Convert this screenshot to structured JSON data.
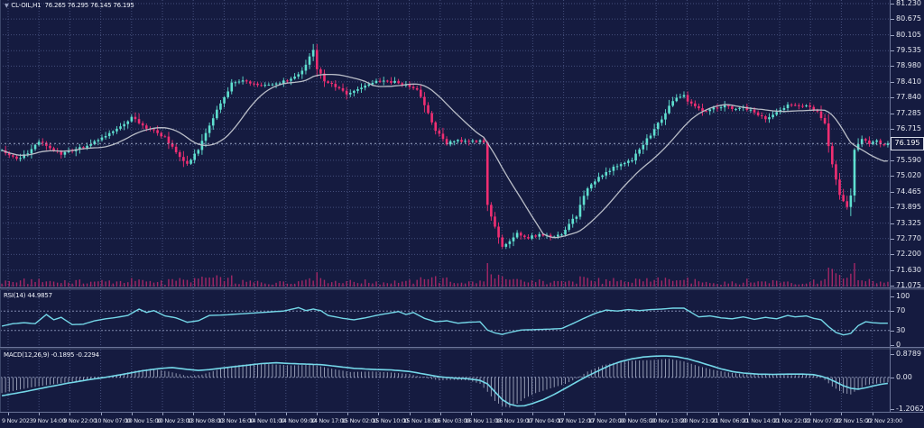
{
  "app": {
    "title_symbol": "CL-OIL,H1",
    "title_ohlc": "76.265 76.295 76.145 76.195"
  },
  "colors": {
    "background": "#151b40",
    "grid": "#454f7c",
    "level_line": "#8089ae",
    "current_price_line": "#9aa3c0",
    "bull": "#5fe0d0",
    "bear": "#f02e72",
    "ma": "#b9bdc7",
    "volume": "#a32766",
    "indicator_line": "#74d7e8",
    "histogram": "#b9c0d4",
    "axis_text": "#e6e9f2"
  },
  "chart_data": [
    {
      "id": "price",
      "type": "candlestick",
      "symbol": "CL-OIL",
      "timeframe": "H1",
      "bars": 240,
      "ylim": [
        71.075,
        81.23
      ],
      "y_ticks": [
        "81.230",
        "80.675",
        "80.105",
        "79.535",
        "78.980",
        "78.410",
        "77.840",
        "77.285",
        "76.715",
        "76.145",
        "75.590",
        "75.020",
        "74.465",
        "73.895",
        "73.325",
        "72.770",
        "72.200",
        "71.630",
        "71.075"
      ],
      "current_price": 76.195,
      "current_price_label": "76.195",
      "ma_period": 16,
      "close_anchors": [
        [
          0,
          75.95
        ],
        [
          2,
          75.8
        ],
        [
          4,
          75.62
        ],
        [
          7,
          75.85
        ],
        [
          10,
          76.28
        ],
        [
          13,
          76.05
        ],
        [
          16,
          75.82
        ],
        [
          19,
          75.95
        ],
        [
          22,
          76.05
        ],
        [
          26,
          76.3
        ],
        [
          29,
          76.55
        ],
        [
          32,
          76.8
        ],
        [
          35,
          77.15
        ],
        [
          38,
          76.8
        ],
        [
          41,
          76.65
        ],
        [
          44,
          76.4
        ],
        [
          47,
          75.9
        ],
        [
          50,
          75.45
        ],
        [
          53,
          75.95
        ],
        [
          55,
          76.55
        ],
        [
          58,
          77.4
        ],
        [
          62,
          78.35
        ],
        [
          66,
          78.45
        ],
        [
          70,
          78.25
        ],
        [
          74,
          78.35
        ],
        [
          78,
          78.5
        ],
        [
          81,
          78.85
        ],
        [
          83,
          79.3
        ],
        [
          84,
          79.55
        ],
        [
          85,
          78.9
        ],
        [
          87,
          78.45
        ],
        [
          90,
          78.25
        ],
        [
          93,
          78.0
        ],
        [
          96,
          78.15
        ],
        [
          99,
          78.3
        ],
        [
          102,
          78.45
        ],
        [
          106,
          78.4
        ],
        [
          109,
          78.3
        ],
        [
          112,
          78.1
        ],
        [
          114,
          77.55
        ],
        [
          117,
          76.7
        ],
        [
          120,
          76.2
        ],
        [
          123,
          76.3
        ],
        [
          126,
          76.25
        ],
        [
          129,
          76.3
        ],
        [
          130,
          76.2
        ],
        [
          131,
          74.0
        ],
        [
          133,
          73.2
        ],
        [
          135,
          72.45
        ],
        [
          137,
          72.7
        ],
        [
          139,
          72.95
        ],
        [
          142,
          72.8
        ],
        [
          145,
          72.9
        ],
        [
          148,
          72.85
        ],
        [
          151,
          72.95
        ],
        [
          153,
          73.3
        ],
        [
          155,
          73.6
        ],
        [
          158,
          74.6
        ],
        [
          161,
          75.0
        ],
        [
          164,
          75.25
        ],
        [
          167,
          75.45
        ],
        [
          170,
          75.6
        ],
        [
          172,
          76.0
        ],
        [
          175,
          76.5
        ],
        [
          178,
          77.1
        ],
        [
          181,
          77.75
        ],
        [
          184,
          77.9
        ],
        [
          186,
          77.6
        ],
        [
          189,
          77.35
        ],
        [
          192,
          77.5
        ],
        [
          195,
          77.55
        ],
        [
          198,
          77.45
        ],
        [
          200,
          77.5
        ],
        [
          203,
          77.3
        ],
        [
          206,
          77.1
        ],
        [
          209,
          77.35
        ],
        [
          212,
          77.6
        ],
        [
          215,
          77.5
        ],
        [
          218,
          77.55
        ],
        [
          220,
          77.3
        ],
        [
          222,
          76.9
        ],
        [
          223,
          76.1
        ],
        [
          224,
          75.4
        ],
        [
          226,
          74.3
        ],
        [
          228,
          73.95
        ],
        [
          229,
          74.3
        ],
        [
          230,
          76.0
        ],
        [
          232,
          76.35
        ],
        [
          234,
          76.2
        ],
        [
          236,
          76.3
        ],
        [
          238,
          76.1
        ],
        [
          239,
          76.195
        ]
      ],
      "x_ticks": [
        "9 Nov 2023",
        "9 Nov 14:00",
        "9 Nov 22:00",
        "10 Nov 07:00",
        "10 Nov 15:00",
        "10 Nov 23:00",
        "13 Nov 08:00",
        "13 Nov 16:00",
        "14 Nov 01:00",
        "14 Nov 09:00",
        "14 Nov 17:00",
        "15 Nov 02:00",
        "15 Nov 10:00",
        "15 Nov 18:00",
        "16 Nov 03:00",
        "16 Nov 11:00",
        "16 Nov 19:00",
        "17 Nov 04:00",
        "17 Nov 12:00",
        "17 Nov 20:00",
        "20 Nov 05:00",
        "20 Nov 13:00",
        "20 Nov 21:00",
        "21 Nov 06:00",
        "21 Nov 14:00",
        "21 Nov 22:00",
        "22 Nov 07:00",
        "22 Nov 15:00",
        "22 Nov 23:00"
      ]
    },
    {
      "id": "rsi",
      "type": "line",
      "label": "RSI(14) 44.9857",
      "value": 44.9857,
      "ylim": [
        0,
        100
      ],
      "levels": [
        70,
        30
      ],
      "y_ticks": [
        "100",
        "70",
        "30",
        "0"
      ],
      "anchors": [
        [
          0,
          39
        ],
        [
          3,
          44
        ],
        [
          6,
          46
        ],
        [
          9,
          44
        ],
        [
          12,
          63
        ],
        [
          14,
          52
        ],
        [
          16,
          57
        ],
        [
          19,
          42
        ],
        [
          22,
          43
        ],
        [
          25,
          50
        ],
        [
          28,
          54
        ],
        [
          31,
          57
        ],
        [
          34,
          61
        ],
        [
          37,
          74
        ],
        [
          39,
          67
        ],
        [
          41,
          71
        ],
        [
          44,
          60
        ],
        [
          47,
          56
        ],
        [
          50,
          47
        ],
        [
          53,
          50
        ],
        [
          56,
          61
        ],
        [
          60,
          62
        ],
        [
          64,
          64
        ],
        [
          68,
          66
        ],
        [
          72,
          68
        ],
        [
          76,
          70
        ],
        [
          80,
          77
        ],
        [
          82,
          71
        ],
        [
          84,
          74
        ],
        [
          86,
          71
        ],
        [
          88,
          61
        ],
        [
          92,
          55
        ],
        [
          95,
          52
        ],
        [
          98,
          56
        ],
        [
          101,
          61
        ],
        [
          104,
          65
        ],
        [
          107,
          69
        ],
        [
          109,
          63
        ],
        [
          111,
          67
        ],
        [
          114,
          55
        ],
        [
          117,
          48
        ],
        [
          120,
          50
        ],
        [
          123,
          45
        ],
        [
          126,
          47
        ],
        [
          129,
          48
        ],
        [
          131,
          31
        ],
        [
          133,
          25
        ],
        [
          135,
          22
        ],
        [
          137,
          26
        ],
        [
          140,
          31
        ],
        [
          144,
          32
        ],
        [
          148,
          33
        ],
        [
          151,
          34
        ],
        [
          154,
          44
        ],
        [
          157,
          55
        ],
        [
          160,
          65
        ],
        [
          163,
          72
        ],
        [
          166,
          70
        ],
        [
          169,
          73
        ],
        [
          172,
          71
        ],
        [
          175,
          73
        ],
        [
          178,
          74
        ],
        [
          181,
          76
        ],
        [
          184,
          76
        ],
        [
          186,
          67
        ],
        [
          188,
          58
        ],
        [
          191,
          60
        ],
        [
          194,
          56
        ],
        [
          197,
          54
        ],
        [
          200,
          58
        ],
        [
          203,
          53
        ],
        [
          206,
          57
        ],
        [
          209,
          54
        ],
        [
          212,
          61
        ],
        [
          214,
          58
        ],
        [
          217,
          60
        ],
        [
          219,
          55
        ],
        [
          221,
          52
        ],
        [
          223,
          38
        ],
        [
          225,
          26
        ],
        [
          227,
          21
        ],
        [
          229,
          24
        ],
        [
          231,
          40
        ],
        [
          233,
          48
        ],
        [
          235,
          46
        ],
        [
          237,
          45
        ],
        [
          239,
          45
        ]
      ]
    },
    {
      "id": "macd",
      "type": "macd",
      "label": "MACD(12,26,9) -0.1895 -0.2294",
      "main_value": -0.1895,
      "signal_value": -0.2294,
      "ylim": [
        -1.2062,
        0.8789
      ],
      "y_ticks": [
        "0.8789",
        "0.00",
        "-1.2062"
      ],
      "main_anchors": [
        [
          0,
          -0.6
        ],
        [
          8,
          -0.38
        ],
        [
          16,
          -0.22
        ],
        [
          22,
          -0.12
        ],
        [
          27,
          0.0
        ],
        [
          32,
          0.12
        ],
        [
          36,
          0.25
        ],
        [
          40,
          0.32
        ],
        [
          45,
          0.22
        ],
        [
          50,
          0.05
        ],
        [
          54,
          0.1
        ],
        [
          58,
          0.28
        ],
        [
          63,
          0.45
        ],
        [
          68,
          0.52
        ],
        [
          72,
          0.5
        ],
        [
          78,
          0.45
        ],
        [
          84,
          0.48
        ],
        [
          88,
          0.35
        ],
        [
          94,
          0.2
        ],
        [
          100,
          0.22
        ],
        [
          105,
          0.18
        ],
        [
          110,
          0.12
        ],
        [
          114,
          -0.02
        ],
        [
          118,
          -0.12
        ],
        [
          122,
          -0.1
        ],
        [
          126,
          -0.12
        ],
        [
          129,
          -0.25
        ],
        [
          131,
          -0.55
        ],
        [
          133,
          -0.9
        ],
        [
          135,
          -1.1
        ],
        [
          137,
          -1.15
        ],
        [
          139,
          -1.0
        ],
        [
          141,
          -0.8
        ],
        [
          144,
          -0.6
        ],
        [
          148,
          -0.42
        ],
        [
          152,
          -0.25
        ],
        [
          155,
          -0.05
        ],
        [
          158,
          0.22
        ],
        [
          162,
          0.45
        ],
        [
          166,
          0.58
        ],
        [
          170,
          0.63
        ],
        [
          175,
          0.65
        ],
        [
          180,
          0.7
        ],
        [
          184,
          0.6
        ],
        [
          188,
          0.42
        ],
        [
          192,
          0.28
        ],
        [
          196,
          0.18
        ],
        [
          200,
          0.12
        ],
        [
          205,
          0.1
        ],
        [
          210,
          0.1
        ],
        [
          214,
          0.08
        ],
        [
          218,
          0.1
        ],
        [
          221,
          0.02
        ],
        [
          224,
          -0.35
        ],
        [
          227,
          -0.6
        ],
        [
          229,
          -0.65
        ],
        [
          231,
          -0.45
        ],
        [
          233,
          -0.3
        ],
        [
          235,
          -0.25
        ],
        [
          237,
          -0.22
        ],
        [
          239,
          -0.19
        ]
      ],
      "signal_anchors": [
        [
          0,
          -0.7
        ],
        [
          6,
          -0.55
        ],
        [
          12,
          -0.38
        ],
        [
          18,
          -0.22
        ],
        [
          24,
          -0.08
        ],
        [
          28,
          0.0
        ],
        [
          33,
          0.12
        ],
        [
          38,
          0.25
        ],
        [
          43,
          0.34
        ],
        [
          46,
          0.37
        ],
        [
          50,
          0.3
        ],
        [
          53,
          0.26
        ],
        [
          56,
          0.29
        ],
        [
          60,
          0.36
        ],
        [
          65,
          0.44
        ],
        [
          70,
          0.52
        ],
        [
          74,
          0.55
        ],
        [
          78,
          0.52
        ],
        [
          82,
          0.5
        ],
        [
          86,
          0.48
        ],
        [
          90,
          0.42
        ],
        [
          95,
          0.34
        ],
        [
          100,
          0.3
        ],
        [
          105,
          0.28
        ],
        [
          110,
          0.22
        ],
        [
          114,
          0.12
        ],
        [
          118,
          0.02
        ],
        [
          122,
          -0.03
        ],
        [
          126,
          -0.06
        ],
        [
          129,
          -0.12
        ],
        [
          131,
          -0.25
        ],
        [
          133,
          -0.55
        ],
        [
          135,
          -0.85
        ],
        [
          137,
          -1.02
        ],
        [
          139,
          -1.09
        ],
        [
          141,
          -1.08
        ],
        [
          143,
          -1.0
        ],
        [
          146,
          -0.85
        ],
        [
          149,
          -0.65
        ],
        [
          152,
          -0.42
        ],
        [
          155,
          -0.18
        ],
        [
          158,
          0.05
        ],
        [
          161,
          0.25
        ],
        [
          164,
          0.45
        ],
        [
          167,
          0.6
        ],
        [
          170,
          0.7
        ],
        [
          173,
          0.77
        ],
        [
          176,
          0.8
        ],
        [
          179,
          0.81
        ],
        [
          182,
          0.78
        ],
        [
          185,
          0.7
        ],
        [
          188,
          0.58
        ],
        [
          191,
          0.45
        ],
        [
          194,
          0.32
        ],
        [
          197,
          0.22
        ],
        [
          200,
          0.16
        ],
        [
          204,
          0.12
        ],
        [
          208,
          0.11
        ],
        [
          212,
          0.12
        ],
        [
          216,
          0.12
        ],
        [
          219,
          0.1
        ],
        [
          221,
          0.04
        ],
        [
          223,
          -0.05
        ],
        [
          225,
          -0.18
        ],
        [
          227,
          -0.32
        ],
        [
          229,
          -0.42
        ],
        [
          231,
          -0.45
        ],
        [
          233,
          -0.4
        ],
        [
          235,
          -0.33
        ],
        [
          237,
          -0.27
        ],
        [
          239,
          -0.2294
        ]
      ]
    }
  ]
}
